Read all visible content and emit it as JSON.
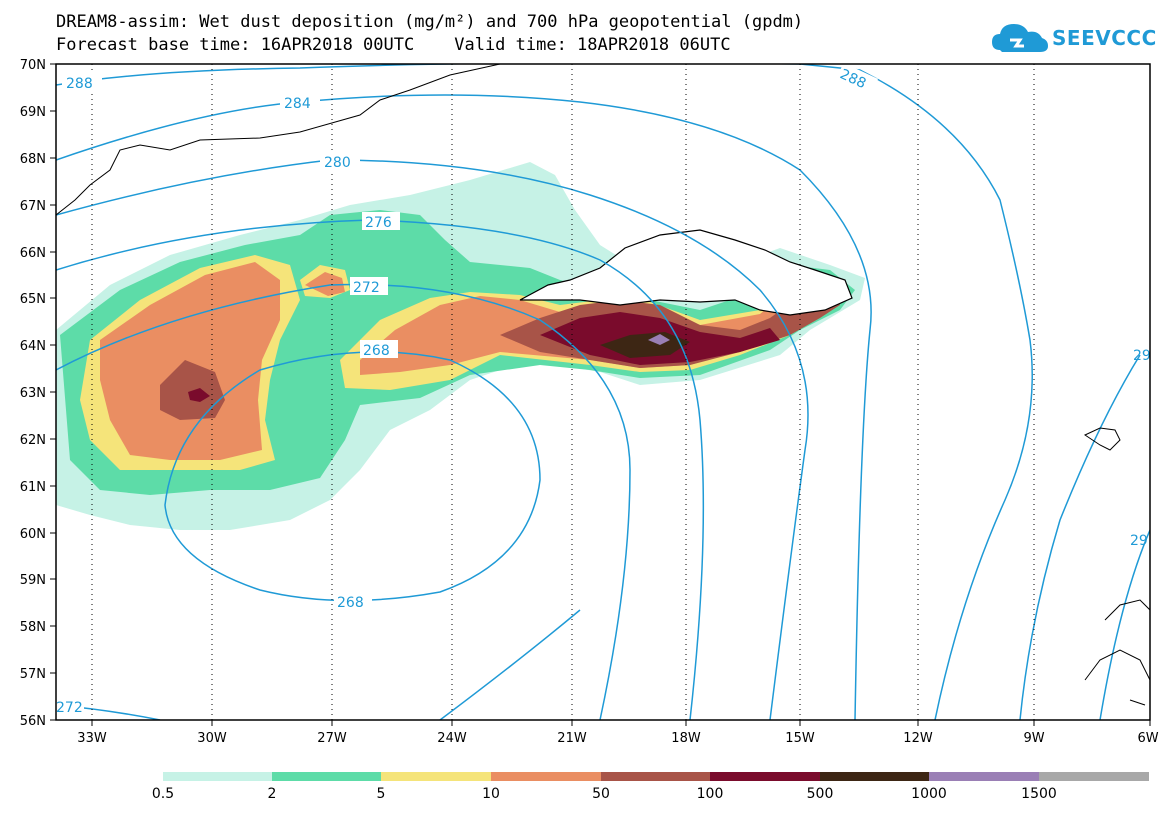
{
  "title": {
    "line1": "DREAM8-assim: Wet dust deposition (mg/m²) and 700 hPa geopotential (gpdm)",
    "base_time": "Forecast base time: 16APR2018 00UTC",
    "valid_time": "Valid time: 18APR2018 06UTC"
  },
  "logo": {
    "text": "SEEVCCC",
    "icon": "cloud-icon",
    "color": "#1f9ad6"
  },
  "axes": {
    "lat_labels": [
      "70N",
      "69N",
      "68N",
      "67N",
      "66N",
      "65N",
      "64N",
      "63N",
      "62N",
      "61N",
      "60N",
      "59N",
      "58N",
      "57N",
      "56N"
    ],
    "lon_labels": [
      "33W",
      "30W",
      "27W",
      "24W",
      "21W",
      "18W",
      "15W",
      "12W",
      "9W",
      "6W"
    ]
  },
  "contours": {
    "color": "#1f9ad6",
    "labels": [
      "288",
      "284",
      "280",
      "276",
      "272",
      "268",
      "268",
      "288",
      "272",
      "29",
      "29"
    ]
  },
  "legend": {
    "labels": [
      "0.5",
      "2",
      "5",
      "10",
      "50",
      "100",
      "500",
      "1000",
      "1500"
    ],
    "colors": [
      "#c6f2e6",
      "#5ddca8",
      "#f5e47a",
      "#ea8e62",
      "#a85448",
      "#7a0b2c",
      "#3d2614",
      "#9a7fb5",
      "#a8a8a8"
    ]
  }
}
